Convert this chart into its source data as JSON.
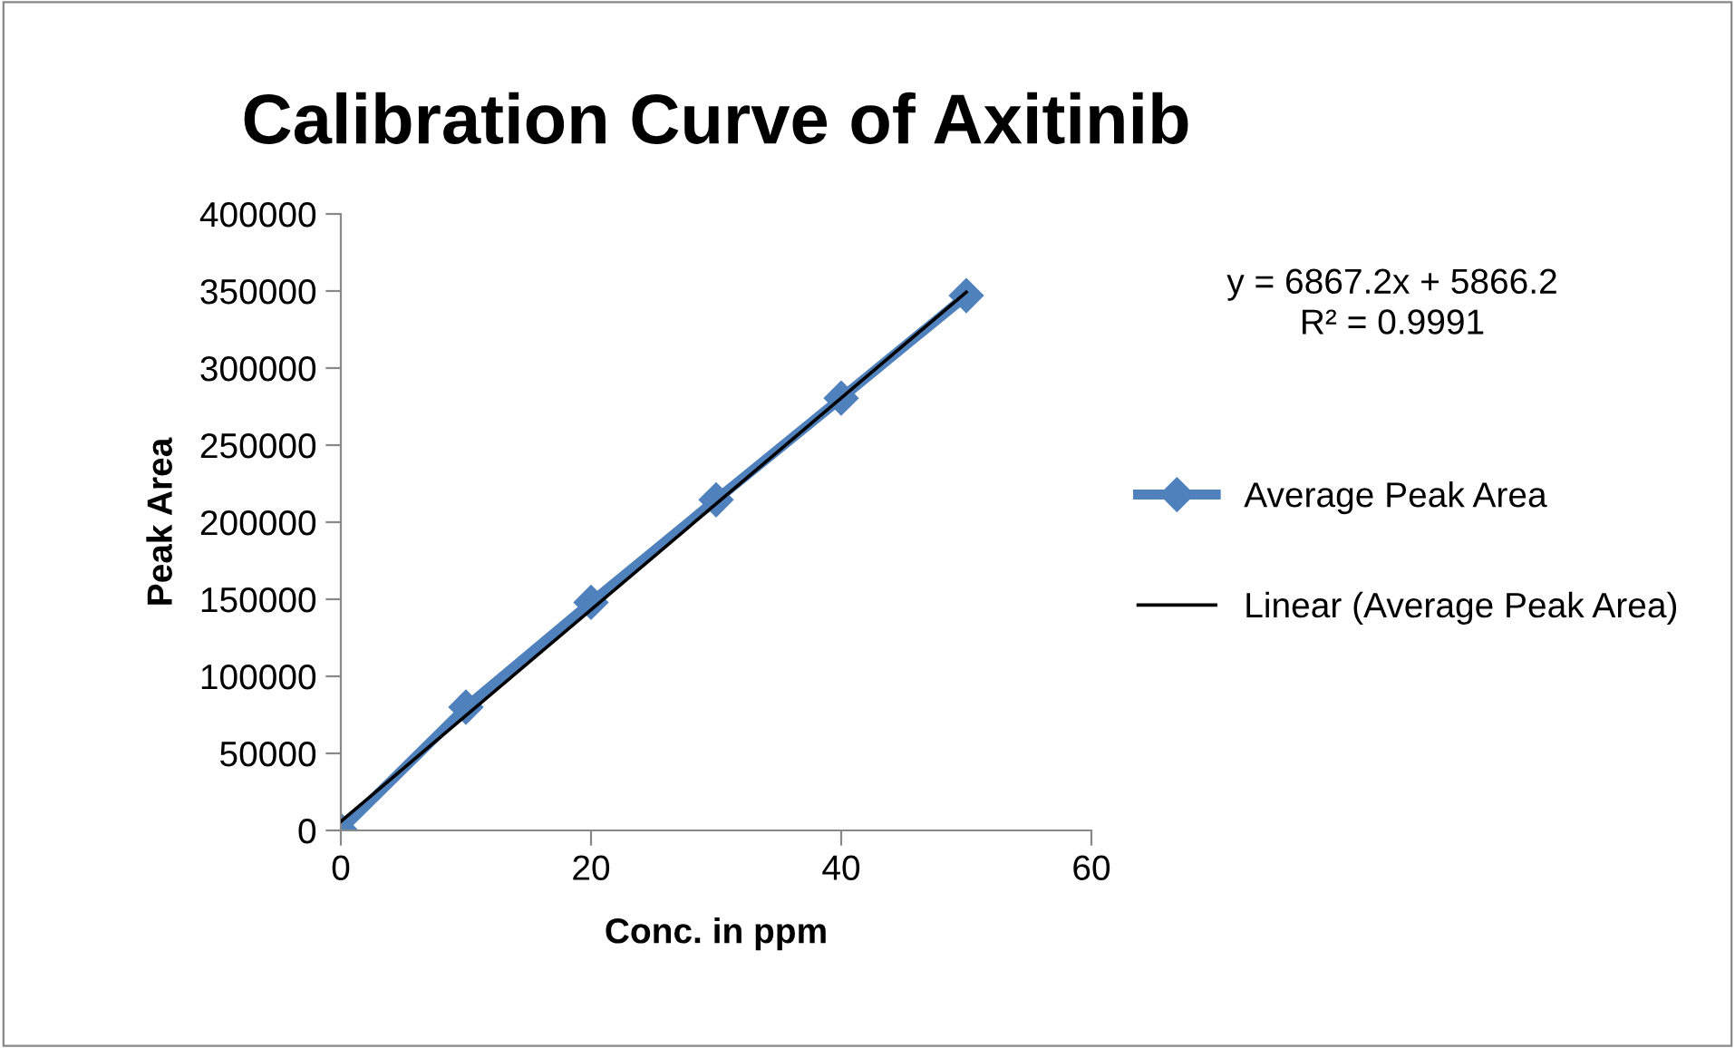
{
  "chart_data": {
    "type": "line",
    "title": "Calibration Curve of Axitinib",
    "xlabel": "Conc. in ppm",
    "ylabel": "Peak Area",
    "x": [
      0,
      10,
      20,
      30,
      40,
      50
    ],
    "series": [
      {
        "name": "Average Peak Area",
        "color": "#4f81bd",
        "values": [
          0,
          80000,
          148000,
          214500,
          280500,
          347000
        ],
        "marker": "diamond"
      },
      {
        "name": "Linear (Average Peak Area)",
        "color": "#000000",
        "type": "line",
        "x": [
          0,
          50
        ],
        "values": [
          5866.2,
          349226.2
        ],
        "marker": "none"
      }
    ],
    "annotations": [
      "y = 6867.2x + 5866.2\nR² = 0.9991"
    ],
    "xlim": [
      0,
      60
    ],
    "xticks": [
      0,
      20,
      40,
      60
    ],
    "ylim": [
      0,
      400000
    ],
    "yticks": [
      0,
      50000,
      100000,
      150000,
      200000,
      250000,
      300000,
      350000,
      400000
    ],
    "grid": false,
    "legend": "right",
    "line_style": "solid"
  }
}
